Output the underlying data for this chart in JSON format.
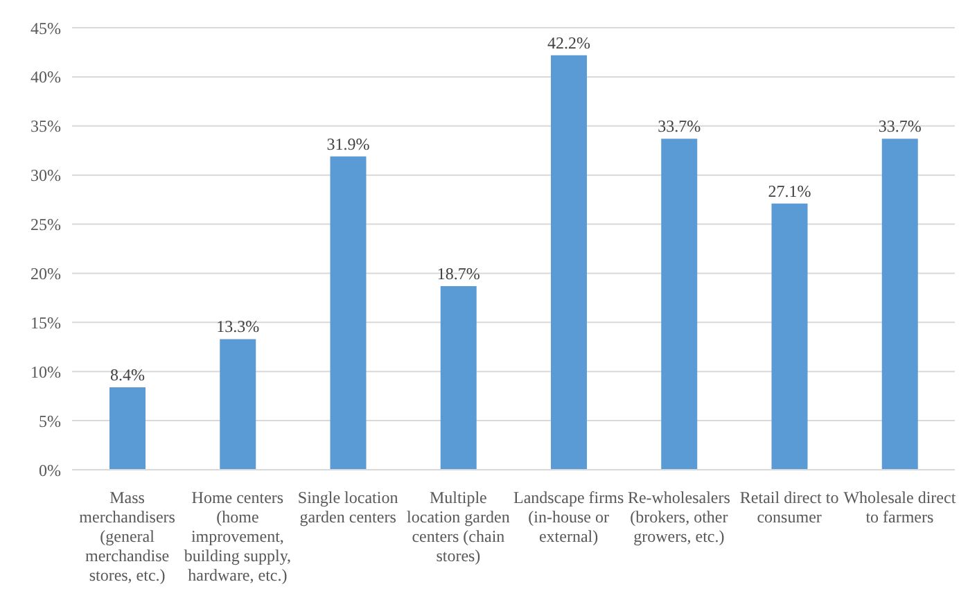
{
  "chart_data": {
    "type": "bar",
    "categories": [
      "Mass merchandisers (general merchandise stores, etc.)",
      "Home centers (home improvement, building supply, hardware, etc.)",
      "Single location garden centers",
      "Multiple location garden centers (chain stores)",
      "Landscape firms (in-house or external)",
      "Re-wholesalers (brokers, other growers, etc.)",
      "Retail direct to consumer",
      "Wholesale direct to farmers"
    ],
    "values": [
      8.4,
      13.3,
      31.9,
      18.7,
      42.2,
      33.7,
      27.1,
      33.7
    ],
    "value_labels": [
      "8.4%",
      "13.3%",
      "31.9%",
      "18.7%",
      "42.2%",
      "33.7%",
      "27.1%",
      "33.7%"
    ],
    "color": "#5b9bd5",
    "ylim": [
      0,
      45
    ],
    "yticks": [
      {
        "value": 0,
        "label": "0%"
      },
      {
        "value": 5,
        "label": "5%"
      },
      {
        "value": 10,
        "label": "10%"
      },
      {
        "value": 15,
        "label": "15%"
      },
      {
        "value": 20,
        "label": "20%"
      },
      {
        "value": 25,
        "label": "25%"
      },
      {
        "value": 30,
        "label": "30%"
      },
      {
        "value": 35,
        "label": "35%"
      },
      {
        "value": 40,
        "label": "40%"
      },
      {
        "value": 45,
        "label": "45%"
      }
    ],
    "grid": "y"
  }
}
